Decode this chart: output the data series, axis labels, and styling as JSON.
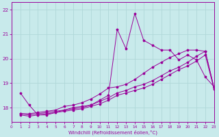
{
  "xlabel": "Windchill (Refroidissement éolien,°C)",
  "xlim": [
    0,
    23
  ],
  "ylim": [
    17.4,
    22.3
  ],
  "yticks": [
    18,
    19,
    20,
    21,
    22
  ],
  "xticks": [
    0,
    1,
    2,
    3,
    4,
    5,
    6,
    7,
    8,
    9,
    10,
    11,
    12,
    13,
    14,
    15,
    16,
    17,
    18,
    19,
    20,
    21,
    22,
    23
  ],
  "bg_color": "#c8eaeb",
  "line_color": "#990099",
  "grid_color": "#b0d8d8",
  "series": [
    [
      0,
      18.6,
      18.1,
      17.7,
      17.7,
      17.8,
      17.9,
      18.0,
      18.05,
      18.1,
      18.3,
      18.5,
      21.2,
      20.4,
      21.85,
      20.75,
      20.55,
      20.35,
      20.35,
      19.95,
      20.15,
      19.95,
      19.25,
      18.85
    ],
    [
      0,
      17.75,
      17.75,
      17.8,
      17.85,
      17.9,
      18.05,
      18.1,
      18.2,
      18.35,
      18.55,
      18.8,
      18.85,
      18.95,
      19.15,
      19.4,
      19.65,
      19.85,
      20.05,
      20.2,
      20.35,
      20.35,
      20.3,
      18.8
    ],
    [
      0,
      17.75,
      17.7,
      17.75,
      17.8,
      17.85,
      17.9,
      17.95,
      18.0,
      18.1,
      18.25,
      18.4,
      18.6,
      18.7,
      18.85,
      18.95,
      19.1,
      19.3,
      19.5,
      19.65,
      19.85,
      20.1,
      20.3,
      18.8
    ],
    [
      0,
      17.7,
      17.65,
      17.7,
      17.75,
      17.8,
      17.85,
      17.9,
      17.95,
      18.05,
      18.15,
      18.3,
      18.5,
      18.6,
      18.7,
      18.8,
      18.95,
      19.15,
      19.35,
      19.55,
      19.7,
      19.9,
      20.15,
      18.75
    ]
  ]
}
